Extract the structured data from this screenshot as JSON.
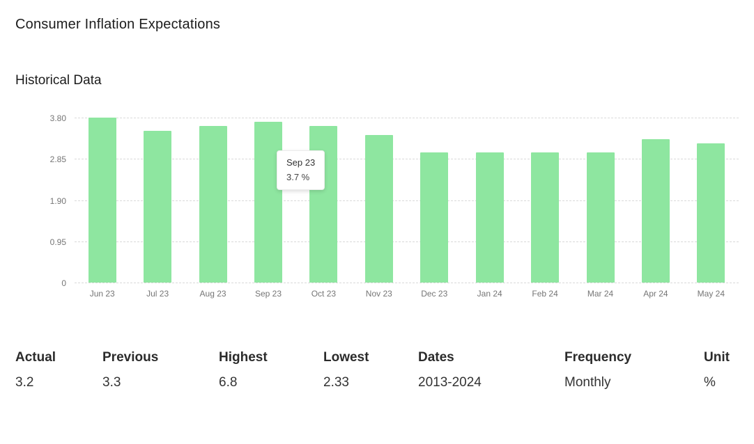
{
  "header": {
    "title": "Consumer Inflation Expectations",
    "section": "Historical Data"
  },
  "chart_data": {
    "type": "bar",
    "title": "Historical Data",
    "categories": [
      "Jun 23",
      "Jul 23",
      "Aug 23",
      "Sep 23",
      "Oct 23",
      "Nov 23",
      "Dec 23",
      "Jan 24",
      "Feb 24",
      "Mar 24",
      "Apr 24",
      "May 24"
    ],
    "values": [
      3.8,
      3.5,
      3.6,
      3.7,
      3.6,
      3.4,
      3.0,
      3.0,
      3.0,
      3.0,
      3.3,
      3.2
    ],
    "unit": "%",
    "ylim": [
      0,
      3.8
    ],
    "yticks": [
      {
        "value": 0,
        "label": "0"
      },
      {
        "value": 0.95,
        "label": "0.95"
      },
      {
        "value": 1.9,
        "label": "1.90"
      },
      {
        "value": 2.85,
        "label": "2.85"
      },
      {
        "value": 3.8,
        "label": "3.80"
      }
    ],
    "grid": "horizontal-dashed",
    "legend": "none",
    "bar_color": "#8ee6a0",
    "tooltip": {
      "label": "Sep 23",
      "value": "3.7 %"
    }
  },
  "stats": {
    "columns": [
      {
        "label": "Actual",
        "value": "3.2"
      },
      {
        "label": "Previous",
        "value": "3.3"
      },
      {
        "label": "Highest",
        "value": "6.8"
      },
      {
        "label": "Lowest",
        "value": "2.33"
      },
      {
        "label": "Dates",
        "value": "2013-2024"
      },
      {
        "label": "Frequency",
        "value": "Monthly"
      },
      {
        "label": "Unit",
        "value": "%"
      }
    ]
  }
}
